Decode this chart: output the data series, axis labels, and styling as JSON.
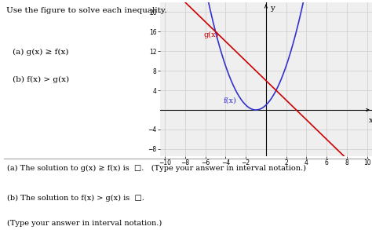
{
  "title_text": "Use the figure to solve each inequality.",
  "part_a_text": "(a) g(x) ≥ f(x)",
  "part_b_text": "(b) f(x) > g(x)",
  "answer_a_text": "(a) The solution to g(x) ≥ f(x) is",
  "answer_b_text": "(b) The solution to f(x) > g(x) is",
  "answer_note_a": "(Type your answer in interval notation.)",
  "answer_note_b": "(Type your answer in interval notation.)",
  "fx_color": "#3333cc",
  "gx_color": "#cc0000",
  "fx_label": "f(x)",
  "gx_label": "g(x)",
  "xlim": [
    -10.5,
    10.5
  ],
  "ylim": [
    -9.5,
    22
  ],
  "xticks": [
    -10,
    -8,
    -6,
    -4,
    -2,
    2,
    4,
    6,
    8,
    10
  ],
  "yticks": [
    -8,
    -4,
    4,
    8,
    12,
    16,
    20
  ],
  "grid_color": "#cccccc",
  "bg_color": "#ffffff",
  "ax_bg_color": "#efefef",
  "fig_width": 4.74,
  "fig_height": 2.93,
  "font_size": 7.5
}
